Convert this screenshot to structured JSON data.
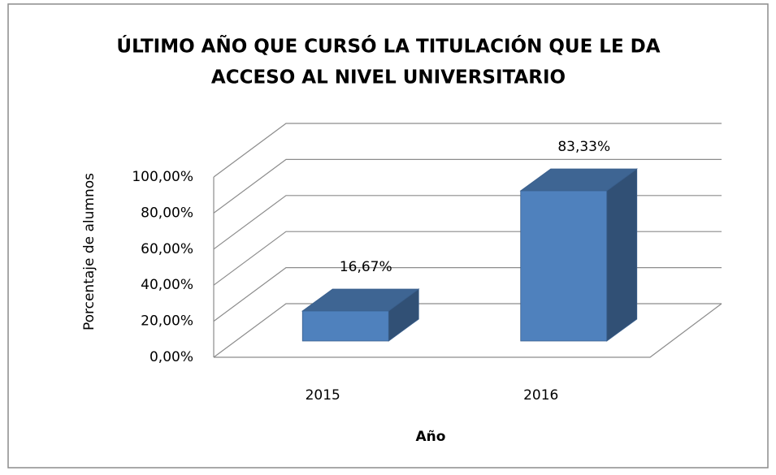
{
  "chart_data": {
    "type": "bar3d",
    "title": [
      "ÚLTIMO AÑO QUE CURSÓ LA TITULACIÓN QUE LE DA",
      "ACCESO AL NIVEL UNIVERSITARIO"
    ],
    "x_label": "Año",
    "y_label": "Porcentaje de alumnos",
    "categories": [
      "2015",
      "2016"
    ],
    "values": [
      16.67,
      83.33
    ],
    "value_labels": [
      "16,67%",
      "83,33%"
    ],
    "color": "#4f81bd",
    "ylim": [
      0,
      100
    ],
    "yticks": [
      {
        "value": 0,
        "label": "0,00%"
      },
      {
        "value": 20,
        "label": "20,00%"
      },
      {
        "value": 40,
        "label": "40,00%"
      },
      {
        "value": 60,
        "label": "60,00%"
      },
      {
        "value": 80,
        "label": "80,00%"
      },
      {
        "value": 100,
        "label": "100,00%"
      }
    ],
    "grid": true
  }
}
